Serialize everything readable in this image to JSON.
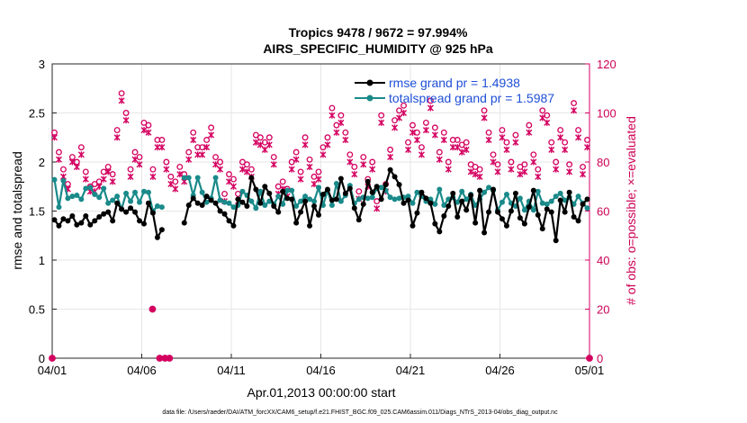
{
  "chart_data": {
    "type": "line",
    "title": "Tropics 9478 / 9672 = 97.994%",
    "subtitle": "AIRS_SPECIFIC_HUMIDITY @ 925 hPa",
    "xlabel": "Apr.01,2013 00:00:00 start",
    "ylabel": "rmse and totalspread",
    "ylabel_right": "# of obs: o=possible; ×=evaluated",
    "footer": "data file: /Users/raeder/DAI/ATM_forcXX/CAM6_setup/f.e21.FHIST_BGC.f09_025.CAM6assim.011/Diags_NTrS_2013-04/obs_diag_output.nc",
    "xlim": [
      0,
      30
    ],
    "ylim": [
      0,
      3
    ],
    "ylim_right": [
      0,
      120
    ],
    "x_ticks": [
      0,
      5,
      10,
      15,
      20,
      25,
      30
    ],
    "x_tick_labels": [
      "04/01",
      "04/06",
      "04/11",
      "04/16",
      "04/21",
      "04/26",
      "05/01"
    ],
    "y_ticks": [
      0,
      0.5,
      1,
      1.5,
      2,
      2.5,
      3
    ],
    "y_tick_labels": [
      "0",
      "0.5",
      "1",
      "1.5",
      "2",
      "2.5",
      "3"
    ],
    "y_ticks_right": [
      0,
      20,
      40,
      60,
      80,
      100,
      120
    ],
    "y_tick_labels_right": [
      "0",
      "20",
      "40",
      "60",
      "80",
      "100",
      "120"
    ],
    "legend": [
      "rmse grand pr = 1.4938",
      "totalspread grand pr = 1.5987"
    ],
    "colors": {
      "rmse": "#000000",
      "spread": "#1a8a8a",
      "obs": "#d40060",
      "grid": "#e6e6e6",
      "gridRight": "#f6d0de"
    },
    "x": [
      0.125,
      0.375,
      0.625,
      0.875,
      1.125,
      1.375,
      1.625,
      1.875,
      2.125,
      2.375,
      2.625,
      2.875,
      3.125,
      3.375,
      3.625,
      3.875,
      4.125,
      4.375,
      4.625,
      4.875,
      5.125,
      5.375,
      5.625,
      5.875,
      6.125,
      6.375,
      6.625,
      6.875,
      7.125,
      7.375,
      7.625,
      7.875,
      8.125,
      8.375,
      8.625,
      8.875,
      9.125,
      9.375,
      9.625,
      9.875,
      10.125,
      10.375,
      10.625,
      10.875,
      11.125,
      11.375,
      11.625,
      11.875,
      12.125,
      12.375,
      12.625,
      12.875,
      13.125,
      13.375,
      13.625,
      13.875,
      14.125,
      14.375,
      14.625,
      14.875,
      15.125,
      15.375,
      15.625,
      15.875,
      16.125,
      16.375,
      16.625,
      16.875,
      17.125,
      17.375,
      17.625,
      17.875,
      18.125,
      18.375,
      18.625,
      18.875,
      19.125,
      19.375,
      19.625,
      19.875,
      20.125,
      20.375,
      20.625,
      20.875,
      21.125,
      21.375,
      21.625,
      21.875,
      22.125,
      22.375,
      22.625,
      22.875,
      23.125,
      23.375,
      23.625,
      23.875,
      24.125,
      24.375,
      24.625,
      24.875,
      25.125,
      25.375,
      25.625,
      25.875,
      26.125,
      26.375,
      26.625,
      26.875,
      27.125,
      27.375,
      27.625,
      27.875,
      28.125,
      28.375,
      28.625,
      28.875,
      29.125,
      29.375,
      29.625,
      29.875
    ],
    "series": [
      {
        "name": "rmse",
        "values": [
          1.41,
          1.35,
          1.42,
          1.4,
          1.45,
          1.36,
          1.38,
          1.45,
          1.36,
          1.4,
          1.44,
          1.47,
          1.49,
          1.4,
          1.58,
          1.52,
          1.49,
          1.53,
          1.49,
          1.4,
          1.37,
          1.58,
          1.48,
          1.23,
          1.31,
          null,
          null,
          null,
          null,
          1.38,
          1.56,
          1.63,
          1.58,
          1.56,
          1.65,
          1.61,
          1.58,
          1.5,
          1.47,
          1.4,
          1.35,
          1.62,
          1.59,
          1.55,
          1.84,
          1.72,
          1.58,
          1.75,
          1.68,
          1.55,
          1.49,
          1.7,
          1.63,
          1.62,
          1.38,
          1.49,
          1.6,
          1.35,
          1.55,
          1.46,
          1.67,
          1.72,
          1.61,
          1.62,
          1.83,
          1.68,
          1.73,
          1.53,
          1.41,
          1.57,
          1.8,
          1.69,
          1.75,
          1.62,
          1.77,
          1.92,
          1.85,
          1.77,
          1.58,
          1.61,
          1.35,
          1.48,
          1.69,
          1.63,
          1.58,
          1.37,
          1.29,
          1.45,
          1.55,
          1.68,
          1.44,
          1.6,
          1.51,
          1.66,
          1.38,
          1.71,
          1.28,
          1.49,
          1.72,
          1.49,
          1.42,
          1.35,
          1.5,
          1.68,
          1.43,
          1.37,
          1.54,
          1.71,
          1.46,
          1.32,
          1.52,
          1.49,
          1.2,
          1.61,
          1.49,
          1.69,
          1.44,
          1.4,
          1.57,
          1.62
        ]
      },
      {
        "name": "totalspread",
        "values": [
          1.82,
          1.54,
          1.81,
          1.63,
          1.65,
          1.66,
          1.62,
          1.73,
          1.74,
          1.67,
          1.64,
          1.73,
          1.58,
          1.61,
          1.65,
          1.52,
          1.68,
          1.6,
          1.69,
          1.59,
          1.7,
          1.69,
          1.5,
          1.55,
          1.54,
          null,
          null,
          null,
          null,
          1.84,
          1.84,
          1.66,
          1.84,
          1.69,
          1.59,
          1.63,
          1.84,
          1.61,
          1.59,
          1.58,
          1.54,
          1.56,
          1.7,
          1.66,
          1.6,
          1.53,
          1.7,
          1.56,
          1.6,
          1.57,
          1.65,
          1.57,
          1.71,
          1.71,
          1.55,
          1.6,
          1.65,
          1.62,
          1.6,
          1.74,
          1.56,
          1.71,
          1.56,
          1.78,
          1.6,
          1.66,
          1.76,
          1.58,
          1.62,
          1.64,
          1.63,
          1.64,
          1.73,
          1.74,
          1.71,
          1.64,
          1.62,
          1.63,
          1.64,
          1.65,
          1.58,
          1.69,
          1.65,
          1.6,
          1.62,
          1.57,
          1.72,
          1.56,
          1.62,
          1.64,
          1.59,
          1.7,
          1.62,
          1.67,
          1.56,
          1.62,
          1.69,
          1.74,
          1.71,
          1.51,
          1.59,
          1.67,
          1.58,
          1.55,
          1.63,
          1.51,
          1.6,
          1.51,
          1.7,
          1.58,
          1.57,
          1.6,
          1.65,
          1.68,
          1.61,
          1.64,
          1.57,
          1.65,
          1.58,
          1.53
        ]
      },
      {
        "name": "obs_possible",
        "values": [
          92,
          84,
          77,
          71,
          82,
          80,
          86,
          76,
          70,
          71,
          72,
          76,
          78,
          75,
          93,
          108,
          100,
          77,
          84,
          82,
          96,
          95,
          77,
          89,
          89,
          80,
          74,
          72,
          78,
          75,
          84,
          92,
          86,
          86,
          89,
          94,
          82,
          80,
          67,
          75,
          73,
          67,
          80,
          79,
          77,
          91,
          90,
          88,
          90,
          82,
          70,
          72,
          69,
          80,
          84,
          76,
          90,
          81,
          74,
          76,
          86,
          90,
          102,
          95,
          99,
          92,
          83,
          78,
          68,
          82,
          73,
          80,
          64,
          99,
          71,
          85,
          97,
          101,
          103,
          88,
          95,
          92,
          86,
          96,
          105,
          94,
          84,
          92,
          80,
          89,
          89,
          87,
          88,
          79,
          78,
          77,
          101,
          92,
          83,
          79,
          93,
          88,
          80,
          91,
          78,
          79,
          95,
          83,
          77,
          101,
          99,
          88,
          80,
          93,
          88,
          79,
          104,
          93,
          78,
          89
        ]
      },
      {
        "name": "obs_evaluated",
        "values": [
          90,
          81,
          74,
          69,
          80,
          78,
          83,
          73,
          68,
          68,
          70,
          73,
          76,
          72,
          90,
          105,
          97,
          74,
          81,
          79,
          93,
          92,
          74,
          86,
          86,
          77,
          71,
          69,
          75,
          72,
          81,
          89,
          83,
          83,
          86,
          91,
          79,
          77,
          64,
          72,
          70,
          64,
          77,
          76,
          74,
          88,
          87,
          85,
          87,
          79,
          67,
          69,
          66,
          77,
          81,
          73,
          87,
          78,
          71,
          73,
          83,
          87,
          99,
          92,
          96,
          89,
          80,
          75,
          65,
          79,
          70,
          77,
          61,
          96,
          68,
          82,
          94,
          98,
          100,
          85,
          92,
          89,
          83,
          93,
          102,
          91,
          81,
          89,
          77,
          86,
          86,
          84,
          85,
          76,
          75,
          74,
          98,
          89,
          80,
          76,
          90,
          85,
          77,
          88,
          75,
          76,
          92,
          80,
          74,
          98,
          96,
          85,
          77,
          90,
          85,
          76,
          101,
          90,
          75,
          86
        ]
      }
    ],
    "zero_obs_x": [
      0,
      6.0,
      6.3,
      6.55,
      30
    ],
    "single_obs_x": [
      5.6
    ],
    "single_obs_value": 20,
    "legend_position": "top-right"
  }
}
